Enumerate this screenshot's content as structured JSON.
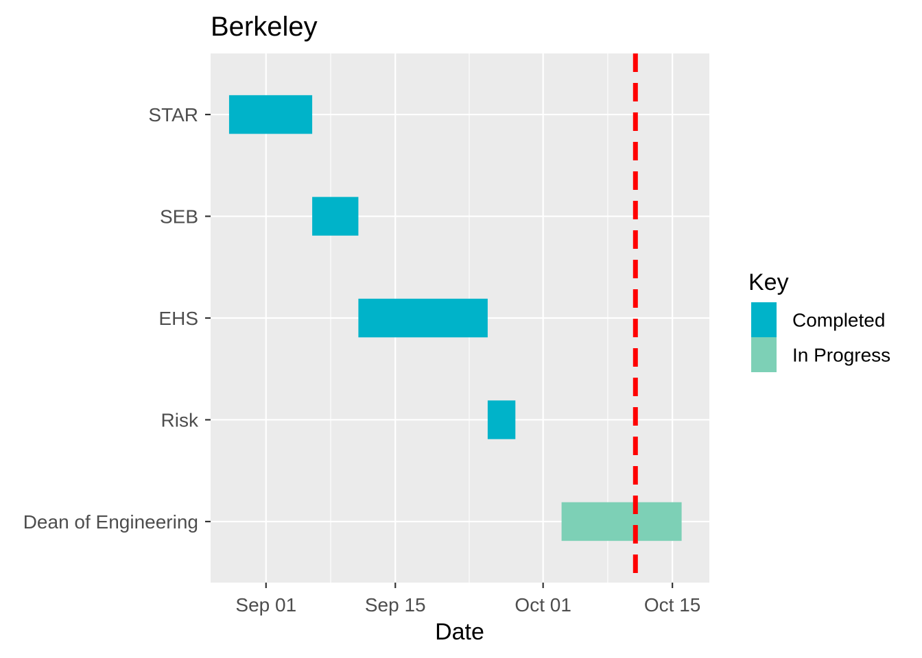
{
  "chart_data": {
    "type": "gantt",
    "title": "Berkeley",
    "xlabel": "Date",
    "ylabel": "",
    "x_type": "date",
    "xlim": [
      "2023-08-26",
      "2023-10-19"
    ],
    "x_ticks": [
      {
        "date": "2023-09-01",
        "label": "Sep 01"
      },
      {
        "date": "2023-09-15",
        "label": "Sep 15"
      },
      {
        "date": "2023-10-01",
        "label": "Oct 01"
      },
      {
        "date": "2023-10-15",
        "label": "Oct 15"
      }
    ],
    "x_minor_ticks": [
      "2023-09-08",
      "2023-09-23",
      "2023-10-08"
    ],
    "grid": true,
    "legend": {
      "title": "Key",
      "position": "right",
      "entries": [
        {
          "label": "Completed",
          "color": "#00B3C9"
        },
        {
          "label": "In Progress",
          "color": "#7DD0B6"
        }
      ]
    },
    "categories": [
      "STAR",
      "SEB",
      "EHS",
      "Risk",
      "Dean of Engineering"
    ],
    "tasks": [
      {
        "name": "STAR",
        "start": "2023-08-28",
        "end": "2023-09-06",
        "status": "Completed"
      },
      {
        "name": "SEB",
        "start": "2023-09-06",
        "end": "2023-09-11",
        "status": "Completed"
      },
      {
        "name": "EHS",
        "start": "2023-09-11",
        "end": "2023-09-25",
        "status": "Completed"
      },
      {
        "name": "Risk",
        "start": "2023-09-25",
        "end": "2023-09-28",
        "status": "Completed"
      },
      {
        "name": "Dean of Engineering",
        "start": "2023-10-03",
        "end": "2023-10-16",
        "status": "In Progress"
      }
    ],
    "reference_line": {
      "date": "2023-10-11",
      "color": "#FF0000",
      "style": "dashed"
    }
  },
  "colors": {
    "panel_background": "#EBEBEB",
    "gridline": "#FFFFFF",
    "axis_text": "#4D4D4D"
  }
}
